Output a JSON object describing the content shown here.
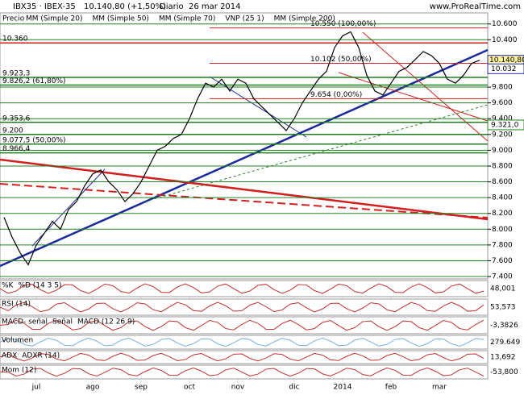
{
  "header": {
    "symbol": "IBX35 · IBEX-35",
    "quote": "10.140,80 (+1,50%)",
    "period": "Diario",
    "date": "26 mar 2014",
    "site": "www.ProRealTime.com"
  },
  "chart_data": {
    "type": "line",
    "overlays": [
      {
        "name": "MM (Simple 20)",
        "color": "#d03030"
      },
      {
        "name": "MM (Simple 50)",
        "color": "#909090"
      },
      {
        "name": "MM (Simple 70)",
        "color": "#2030b0"
      },
      {
        "name": "VNP (25 1)",
        "color": "#a0a0d0"
      },
      {
        "name": "MM (Simple 200)",
        "color": "#208020"
      }
    ],
    "categories": [
      null,
      null,
      null,
      null,
      "jul",
      null,
      null,
      null,
      null,
      null,
      null,
      "ago",
      null,
      null,
      null,
      null,
      null,
      "sep",
      null,
      null,
      null,
      null,
      null,
      "oct",
      null,
      null,
      null,
      null,
      null,
      "nov",
      null,
      null,
      null,
      null,
      null,
      null,
      "dic",
      null,
      null,
      null,
      null,
      null,
      "2014",
      null,
      null,
      null,
      null,
      null,
      "feb",
      null,
      null,
      null,
      null,
      null,
      "mar",
      null,
      null,
      null,
      null,
      null
    ],
    "series": [
      {
        "name": "Precio",
        "color": "#000000",
        "values": [
          8150,
          7900,
          7700,
          7550,
          7800,
          7950,
          8100,
          8000,
          8250,
          8350,
          8550,
          8700,
          8750,
          8600,
          8500,
          8350,
          8450,
          8600,
          8800,
          9000,
          9050,
          9150,
          9200,
          9400,
          9650,
          9850,
          9800,
          9900,
          9750,
          9900,
          9850,
          9650,
          9550,
          9450,
          9350,
          9250,
          9400,
          9600,
          9750,
          9900,
          10000,
          10300,
          10450,
          10500,
          10300,
          9950,
          9750,
          9700,
          9850,
          10000,
          10050,
          10150,
          10250,
          10200,
          10100,
          9900,
          9850,
          9950,
          10100,
          10140.8
        ]
      }
    ],
    "ylim": [
      7370,
      10740
    ],
    "yticks": [
      {
        "value": 10600,
        "label": "10.600"
      },
      {
        "value": 10400,
        "label": "10.400"
      },
      {
        "value": 9800,
        "label": "9.800"
      },
      {
        "value": 9600,
        "label": "9.600"
      },
      {
        "value": 9400,
        "label": "9.400"
      },
      {
        "value": 9200,
        "label": "9.200"
      },
      {
        "value": 9000,
        "label": "9.000"
      },
      {
        "value": 8800,
        "label": "8.800"
      },
      {
        "value": 8600,
        "label": "8.600"
      },
      {
        "value": 8400,
        "label": "8.400"
      },
      {
        "value": 8200,
        "label": "8.200"
      },
      {
        "value": 8000,
        "label": "8.000"
      },
      {
        "value": 7800,
        "label": "7.800"
      },
      {
        "value": 7600,
        "label": "7.600"
      },
      {
        "value": 7400,
        "label": "7.400"
      }
    ],
    "last_value": {
      "value": 10140.8,
      "label": "10.140,80"
    },
    "marker_labels": [
      {
        "value": 10032,
        "label": "10.032",
        "color": "#2030b0"
      },
      {
        "value": 9321,
        "label": "9.321,0",
        "color": "#208020"
      }
    ],
    "left_levels": [
      {
        "value": 10360,
        "label": "10.360"
      },
      {
        "value": 9923.3,
        "label": "9.923,3"
      },
      {
        "value": 9826.2,
        "label": "9.826,2 (61,80%)"
      },
      {
        "value": 9353.6,
        "label": "9.353,6"
      },
      {
        "value": 9200,
        "label": "9.200"
      },
      {
        "value": 9077.5,
        "label": "9.077,5 (50,00%)"
      },
      {
        "value": 8966.4,
        "label": "8.966,4"
      }
    ],
    "fib_levels": [
      {
        "value": 10550,
        "label": "10.550 (100,00%)"
      },
      {
        "value": 10102,
        "label": "10.102 (50,00%)"
      },
      {
        "value": 9654,
        "label": "9.654 (0,00%)"
      }
    ],
    "grid": true
  },
  "panels": [
    {
      "titles": [
        "%K",
        "%D (14 3 5)"
      ],
      "last": "48,001"
    },
    {
      "titles": [
        "RSI (14)"
      ],
      "last": "53,573"
    },
    {
      "titles": [
        "MACD- señal",
        "Señal",
        "MACD (12 26 9)"
      ],
      "last": "-3,3826"
    },
    {
      "titles": [
        "Volumen"
      ],
      "last": "279.649"
    },
    {
      "titles": [
        "ADX",
        "ADXR (14)"
      ],
      "last": "13,692"
    },
    {
      "titles": [
        "Mom (12)"
      ],
      "last": "-53,800"
    }
  ]
}
